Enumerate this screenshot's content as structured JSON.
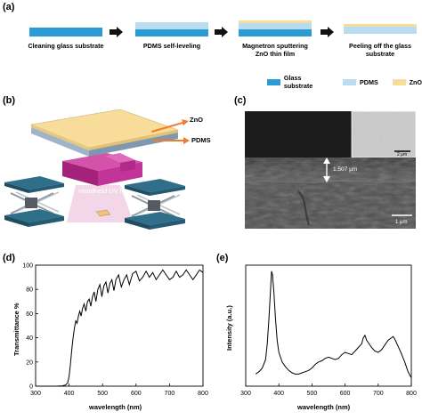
{
  "panels": {
    "a": "(a)",
    "b": "(b)",
    "c": "(c)",
    "d": "(d)",
    "e": "(e)"
  },
  "process": {
    "steps": [
      "Cleaning glass substrate",
      "PDMS self-leveling",
      "Magnetron sputtering\nZnO thin film",
      "Peeling off the glass\nsubstrate"
    ]
  },
  "legend": {
    "items": [
      {
        "label": "Glass substrate",
        "color": "#2b9bd6"
      },
      {
        "label": "PDMS",
        "color": "#b9dcf0"
      },
      {
        "label": "ZnO",
        "color": "#f7dc9a"
      }
    ]
  },
  "schematic": {
    "zno_label": "ZnO",
    "pdms_label": "PDMS",
    "uv_label": "Handheld UV light"
  },
  "sem": {
    "top_scale": "2 μm",
    "thickness": "1.507 μm",
    "bottom_scale": "1 μm"
  },
  "colors": {
    "glass": "#2b9bd6",
    "pdms": "#b9dcf0",
    "zno": "#f7dc9a",
    "arrow": "#ef7d2e",
    "uv": "#c2349a"
  },
  "chart_data": [
    {
      "type": "line",
      "ylabel": "Transmittance %",
      "xlabel": "wavelength (nm)",
      "xlim": [
        300,
        800
      ],
      "ylim": [
        0,
        100
      ],
      "xticks": [
        300,
        400,
        500,
        600,
        700,
        800
      ],
      "yticks": [
        0,
        20,
        40,
        60,
        80,
        100
      ],
      "series": [
        {
          "x": [
            300,
            320,
            340,
            360,
            380,
            390,
            396,
            400,
            404,
            408,
            412,
            416,
            420,
            424,
            428,
            432,
            436,
            440,
            445,
            450,
            455,
            460,
            465,
            470,
            475,
            480,
            486,
            492,
            498,
            504,
            510,
            516,
            522,
            528,
            534,
            540,
            548,
            556,
            564,
            572,
            580,
            590,
            600,
            610,
            620,
            630,
            640,
            650,
            660,
            670,
            680,
            690,
            700,
            710,
            720,
            730,
            740,
            750,
            760,
            770,
            780,
            790,
            800
          ],
          "y": [
            0,
            0,
            0,
            0,
            0.3,
            1,
            3,
            8,
            18,
            30,
            40,
            48,
            54,
            52,
            58,
            62,
            58,
            64,
            68,
            62,
            70,
            72,
            66,
            74,
            78,
            70,
            80,
            84,
            74,
            83,
            86,
            77,
            85,
            88,
            79,
            88,
            92,
            82,
            88,
            92,
            84,
            93,
            95,
            87,
            90,
            95,
            90,
            94,
            88,
            92,
            96,
            92,
            88,
            90,
            95,
            90,
            92,
            96,
            92,
            88,
            92,
            96,
            94
          ]
        }
      ]
    },
    {
      "type": "line",
      "ylabel": "Intensity (a.u.)",
      "xlabel": "wavelength (nm)",
      "xlim": [
        300,
        800
      ],
      "xticks": [
        300,
        400,
        500,
        600,
        700,
        800
      ],
      "series": [
        {
          "x": [
            330,
            340,
            350,
            360,
            365,
            370,
            375,
            378,
            381,
            385,
            390,
            395,
            400,
            410,
            420,
            430,
            440,
            450,
            460,
            470,
            480,
            490,
            500,
            510,
            520,
            530,
            540,
            550,
            560,
            570,
            580,
            590,
            600,
            610,
            620,
            630,
            640,
            650,
            655,
            660,
            665,
            670,
            680,
            690,
            700,
            710,
            720,
            730,
            740,
            745,
            750,
            755,
            760,
            770,
            780,
            790,
            800
          ],
          "y": [
            0.1,
            0.12,
            0.15,
            0.22,
            0.35,
            0.55,
            0.8,
            0.95,
            0.92,
            0.78,
            0.55,
            0.38,
            0.28,
            0.2,
            0.16,
            0.13,
            0.11,
            0.1,
            0.1,
            0.11,
            0.12,
            0.13,
            0.15,
            0.18,
            0.2,
            0.21,
            0.23,
            0.24,
            0.23,
            0.22,
            0.23,
            0.26,
            0.28,
            0.27,
            0.26,
            0.29,
            0.32,
            0.35,
            0.4,
            0.42,
            0.38,
            0.36,
            0.32,
            0.29,
            0.28,
            0.3,
            0.34,
            0.38,
            0.4,
            0.41,
            0.39,
            0.36,
            0.33,
            0.27,
            0.2,
            0.12,
            0.07
          ]
        }
      ]
    }
  ]
}
